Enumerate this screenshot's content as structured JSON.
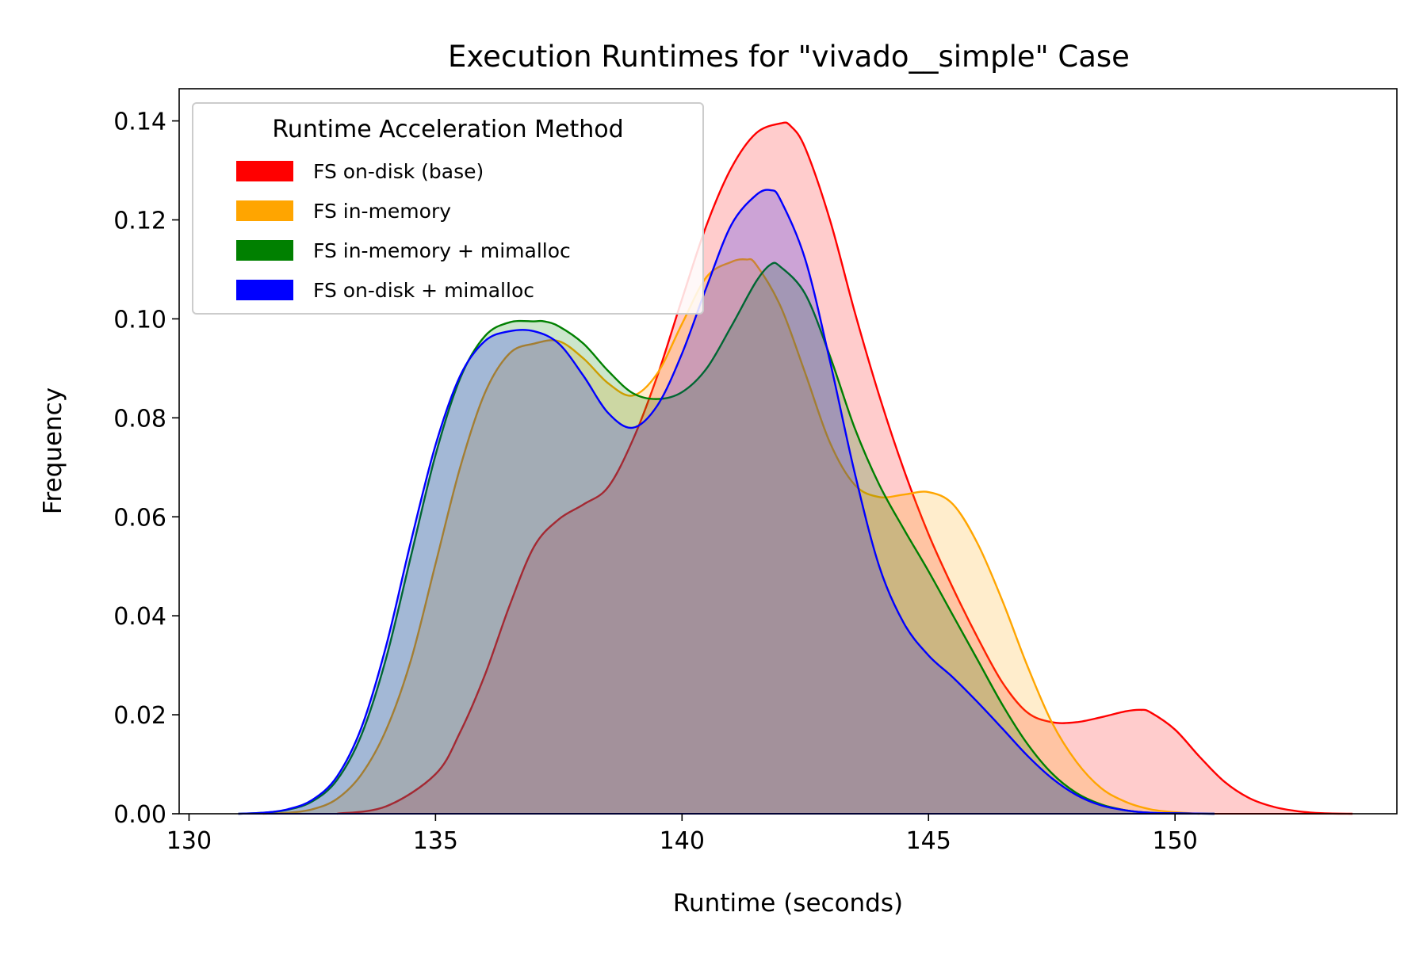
{
  "chart_data": {
    "type": "area",
    "title": "Execution Runtimes for \"vivado__simple\" Case",
    "xlabel": "Runtime (seconds)",
    "ylabel": "Frequency",
    "xlim": [
      129.8,
      154.5
    ],
    "ylim": [
      0,
      0.1465
    ],
    "xticks": [
      130,
      135,
      140,
      145,
      150
    ],
    "xtick_labels": [
      "130",
      "135",
      "140",
      "145",
      "150"
    ],
    "yticks": [
      0,
      0.02,
      0.04,
      0.06,
      0.08,
      0.1,
      0.12,
      0.14
    ],
    "ytick_labels": [
      "0.00",
      "0.02",
      "0.04",
      "0.06",
      "0.08",
      "0.10",
      "0.12",
      "0.14"
    ],
    "grid": false,
    "legend": {
      "title": "Runtime Acceleration Method",
      "placement": "upper-left",
      "entries": [
        {
          "label": "FS on-disk (base)",
          "color": "#ff0000"
        },
        {
          "label": "FS in-memory",
          "color": "#ffa500"
        },
        {
          "label": "FS in-memory + mimalloc",
          "color": "#008000"
        },
        {
          "label": "FS on-disk + mimalloc",
          "color": "#0000ff"
        }
      ]
    },
    "series": [
      {
        "name": "FS on-disk (base)",
        "color": "#ff0000",
        "fill_opacity": 0.2,
        "x": [
          133.0,
          134.0,
          135.0,
          135.5,
          136.0,
          136.5,
          137.0,
          137.5,
          138.0,
          138.5,
          139.0,
          139.5,
          140.0,
          140.5,
          141.0,
          141.5,
          142.0,
          142.2,
          142.5,
          143.0,
          143.5,
          144.0,
          144.5,
          145.0,
          145.5,
          146.0,
          146.5,
          147.0,
          147.5,
          148.0,
          148.5,
          149.0,
          149.3,
          149.5,
          150.0,
          150.5,
          151.0,
          151.5,
          152.0,
          152.5,
          153.0,
          153.6
        ],
        "y": [
          0.0,
          0.0015,
          0.008,
          0.0165,
          0.028,
          0.042,
          0.054,
          0.0595,
          0.0625,
          0.066,
          0.0755,
          0.0885,
          0.104,
          0.119,
          0.1305,
          0.1375,
          0.1395,
          0.139,
          0.1345,
          0.12,
          0.1015,
          0.0845,
          0.0695,
          0.0565,
          0.0455,
          0.0355,
          0.0265,
          0.0205,
          0.0185,
          0.0185,
          0.0195,
          0.0207,
          0.021,
          0.0205,
          0.017,
          0.0115,
          0.0065,
          0.0032,
          0.0014,
          0.0005,
          0.0001,
          0.0
        ]
      },
      {
        "name": "FS in-memory",
        "color": "#ffa500",
        "fill_opacity": 0.2,
        "x": [
          131.5,
          132.0,
          132.5,
          133.0,
          133.5,
          134.0,
          134.5,
          135.0,
          135.5,
          136.0,
          136.5,
          137.0,
          137.5,
          138.0,
          138.5,
          139.0,
          139.5,
          140.0,
          140.5,
          141.0,
          141.3,
          141.5,
          142.0,
          142.5,
          143.0,
          143.5,
          144.0,
          144.5,
          145.0,
          145.5,
          146.0,
          146.5,
          147.0,
          147.5,
          148.0,
          148.5,
          149.0,
          149.5,
          150.0,
          150.5
        ],
        "y": [
          0.0,
          0.0002,
          0.0009,
          0.003,
          0.008,
          0.017,
          0.031,
          0.0505,
          0.07,
          0.085,
          0.093,
          0.095,
          0.0955,
          0.092,
          0.087,
          0.0845,
          0.089,
          0.099,
          0.1085,
          0.1115,
          0.112,
          0.111,
          0.1025,
          0.089,
          0.075,
          0.0665,
          0.064,
          0.0645,
          0.065,
          0.0625,
          0.0545,
          0.043,
          0.03,
          0.0185,
          0.0105,
          0.0052,
          0.0024,
          0.0009,
          0.0003,
          0.0
        ]
      },
      {
        "name": "FS in-memory + mimalloc",
        "color": "#008000",
        "fill_opacity": 0.2,
        "x": [
          131.0,
          131.5,
          132.0,
          132.5,
          133.0,
          133.5,
          134.0,
          134.5,
          135.0,
          135.5,
          136.0,
          136.5,
          137.0,
          137.2,
          137.5,
          138.0,
          138.5,
          139.0,
          139.5,
          140.0,
          140.5,
          141.0,
          141.5,
          141.8,
          142.0,
          142.5,
          143.0,
          143.5,
          144.0,
          144.5,
          145.0,
          145.5,
          146.0,
          146.5,
          147.0,
          147.5,
          148.0,
          148.5,
          149.0,
          149.5,
          150.0,
          150.8
        ],
        "y": [
          0.0,
          0.0002,
          0.0008,
          0.0025,
          0.0068,
          0.016,
          0.0315,
          0.052,
          0.0725,
          0.088,
          0.0965,
          0.0993,
          0.0995,
          0.0995,
          0.0985,
          0.095,
          0.0895,
          0.085,
          0.0838,
          0.0852,
          0.09,
          0.0985,
          0.1075,
          0.111,
          0.1105,
          0.105,
          0.0925,
          0.078,
          0.0665,
          0.0575,
          0.049,
          0.04,
          0.031,
          0.022,
          0.0142,
          0.0082,
          0.0042,
          0.0019,
          0.0007,
          0.0002,
          0.0001,
          0.0
        ]
      },
      {
        "name": "FS on-disk + mimalloc",
        "color": "#0000ff",
        "fill_opacity": 0.2,
        "x": [
          131.0,
          131.5,
          132.0,
          132.5,
          133.0,
          133.5,
          134.0,
          134.5,
          135.0,
          135.5,
          136.0,
          136.5,
          137.0,
          137.5,
          138.0,
          138.5,
          139.0,
          139.5,
          140.0,
          140.5,
          141.0,
          141.5,
          141.8,
          142.0,
          142.5,
          143.0,
          143.5,
          144.0,
          144.5,
          145.0,
          145.5,
          146.0,
          146.5,
          147.0,
          147.5,
          148.0,
          148.5,
          149.0,
          149.5,
          150.0,
          150.8
        ],
        "y": [
          0.0,
          0.0002,
          0.0009,
          0.0028,
          0.0075,
          0.0175,
          0.034,
          0.055,
          0.0745,
          0.0885,
          0.0955,
          0.0975,
          0.0975,
          0.095,
          0.0885,
          0.081,
          0.078,
          0.0825,
          0.093,
          0.1065,
          0.119,
          0.125,
          0.126,
          0.124,
          0.112,
          0.0915,
          0.069,
          0.05,
          0.0385,
          0.032,
          0.0275,
          0.0225,
          0.0172,
          0.0118,
          0.0072,
          0.0038,
          0.0017,
          0.0007,
          0.0002,
          0.0001,
          0.0
        ]
      }
    ]
  }
}
